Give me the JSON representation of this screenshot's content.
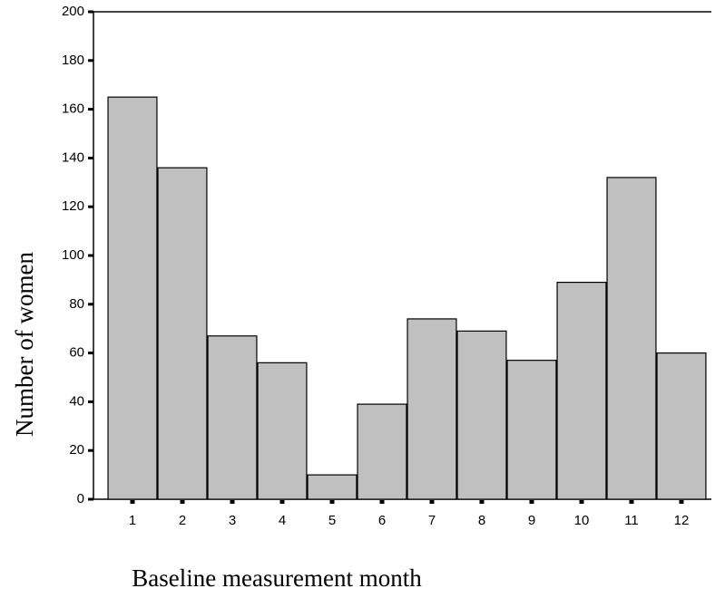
{
  "chart_data": {
    "type": "bar",
    "x_label": "Baseline measurement month",
    "y_label": "Number of women",
    "categories": [
      "1",
      "2",
      "3",
      "4",
      "5",
      "6",
      "7",
      "8",
      "9",
      "10",
      "11",
      "12"
    ],
    "values": [
      165,
      136,
      67,
      56,
      10,
      39,
      74,
      69,
      57,
      89,
      132,
      60
    ],
    "color": "#c0c0c0",
    "ylim": [
      0,
      200
    ],
    "yticks": [
      0,
      20,
      40,
      60,
      80,
      100,
      120,
      140,
      160,
      180,
      200
    ]
  }
}
